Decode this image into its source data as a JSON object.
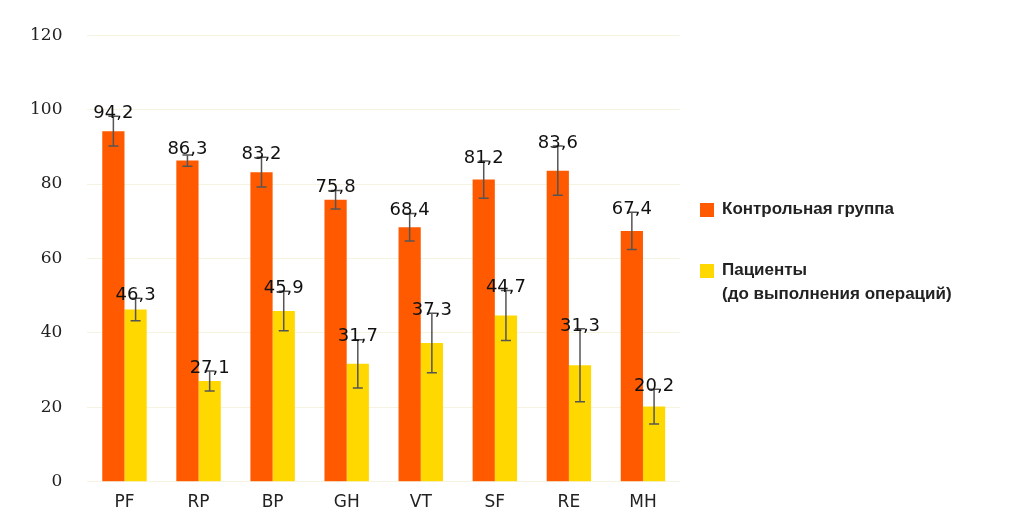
{
  "chart_data": {
    "type": "bar",
    "categories": [
      "PF",
      "RP",
      "BP",
      "GH",
      "VT",
      "SF",
      "RE",
      "MH"
    ],
    "series": [
      {
        "name": "Контрольная группа",
        "color": "#ff5a00",
        "values": [
          94.2,
          86.3,
          83.2,
          75.8,
          68.4,
          81.2,
          83.6,
          67.4
        ],
        "errors": [
          4,
          1.5,
          4,
          2.5,
          3.7,
          5,
          6.6,
          5
        ],
        "value_labels": [
          "94,2",
          "86,3",
          "83,2",
          "75,8",
          "68,4",
          "81,2",
          "83,6",
          "67,4"
        ]
      },
      {
        "name": "Пациенты\n(до выполнения операций)",
        "color": "#ffd800",
        "values": [
          46.3,
          27.1,
          45.9,
          31.7,
          37.3,
          44.7,
          31.3,
          20.2
        ],
        "errors": [
          3,
          2.7,
          5.3,
          6.5,
          8,
          6.7,
          9.8,
          4.7
        ],
        "value_labels": [
          "46,3",
          "27,1",
          "45,9",
          "31,7",
          "37,3",
          "44,7",
          "31,3",
          "20,2"
        ]
      }
    ],
    "ylim": [
      0,
      120
    ],
    "yticks": [
      0,
      20,
      40,
      60,
      80,
      100,
      120
    ],
    "grid": "y",
    "legend": "right"
  }
}
